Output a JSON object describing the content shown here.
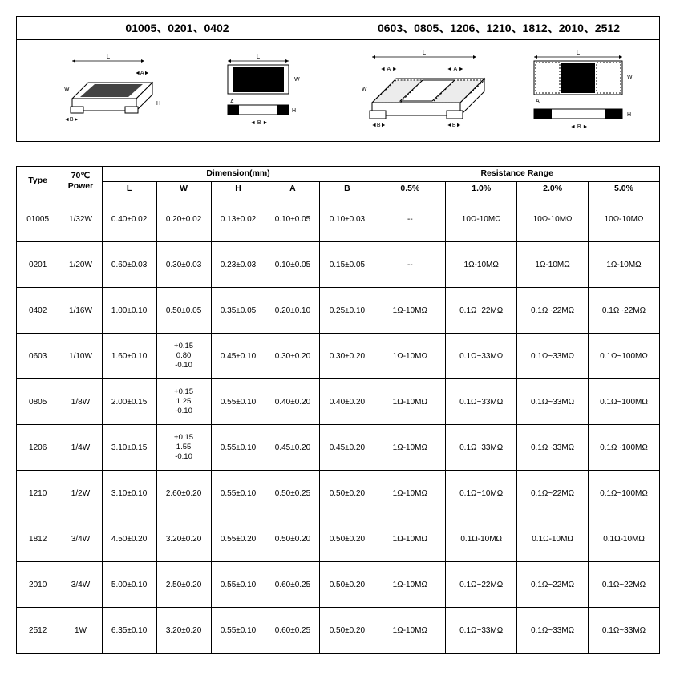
{
  "diagrams": {
    "left_title": "01005、0201、0402",
    "right_title": "0603、0805、1206、1210、1812、2010、2512"
  },
  "table": {
    "header": {
      "type": "Type",
      "power": "70℃\nPower",
      "dim_group": "Dimension(mm)",
      "res_group": "Resistance Range",
      "L": "L",
      "W": "W",
      "H": "H",
      "A": "A",
      "B": "B",
      "p05": "0.5%",
      "p10": "1.0%",
      "p20": "2.0%",
      "p50": "5.0%"
    },
    "rows": [
      {
        "type": "01005",
        "power": "1/32W",
        "L": "0.40±0.02",
        "W": "0.20±0.02",
        "H": "0.13±0.02",
        "A": "0.10±0.05",
        "B": "0.10±0.03",
        "r05": "--",
        "r10": "10Ω-10MΩ",
        "r20": "10Ω-10MΩ",
        "r50": "10Ω-10MΩ"
      },
      {
        "type": "0201",
        "power": "1/20W",
        "L": "0.60±0.03",
        "W": "0.30±0.03",
        "H": "0.23±0.03",
        "A": "0.10±0.05",
        "B": "0.15±0.05",
        "r05": "--",
        "r10": "1Ω-10MΩ",
        "r20": "1Ω-10MΩ",
        "r50": "1Ω-10MΩ"
      },
      {
        "type": "0402",
        "power": "1/16W",
        "L": "1.00±0.10",
        "W": "0.50±0.05",
        "H": "0.35±0.05",
        "A": "0.20±0.10",
        "B": "0.25±0.10",
        "r05": "1Ω-10MΩ",
        "r10": "0.1Ω~22MΩ",
        "r20": "0.1Ω~22MΩ",
        "r50": "0.1Ω~22MΩ"
      },
      {
        "type": "0603",
        "power": "1/10W",
        "L": "1.60±0.10",
        "W": "+0.15\n0.80\n-0.10",
        "H": "0.45±0.10",
        "A": "0.30±0.20",
        "B": "0.30±0.20",
        "r05": "1Ω-10MΩ",
        "r10": "0.1Ω~33MΩ",
        "r20": "0.1Ω~33MΩ",
        "r50": "0.1Ω~100MΩ"
      },
      {
        "type": "0805",
        "power": "1/8W",
        "L": "2.00±0.15",
        "W": "+0.15\n1.25\n-0.10",
        "H": "0.55±0.10",
        "A": "0.40±0.20",
        "B": "0.40±0.20",
        "r05": "1Ω-10MΩ",
        "r10": "0.1Ω~33MΩ",
        "r20": "0.1Ω~33MΩ",
        "r50": "0.1Ω~100MΩ"
      },
      {
        "type": "1206",
        "power": "1/4W",
        "L": "3.10±0.15",
        "W": "+0.15\n1.55\n-0.10",
        "H": "0.55±0.10",
        "A": "0.45±0.20",
        "B": "0.45±0.20",
        "r05": "1Ω-10MΩ",
        "r10": "0.1Ω~33MΩ",
        "r20": "0.1Ω~33MΩ",
        "r50": "0.1Ω~100MΩ"
      },
      {
        "type": "1210",
        "power": "1/2W",
        "L": "3.10±0.10",
        "W": "2.60±0.20",
        "H": "0.55±0.10",
        "A": "0.50±0.25",
        "B": "0.50±0.20",
        "r05": "1Ω-10MΩ",
        "r10": "0.1Ω~10MΩ",
        "r20": "0.1Ω~22MΩ",
        "r50": "0.1Ω~100MΩ"
      },
      {
        "type": "1812",
        "power": "3/4W",
        "L": "4.50±0.20",
        "W": "3.20±0.20",
        "H": "0.55±0.20",
        "A": "0.50±0.20",
        "B": "0.50±0.20",
        "r05": "1Ω-10MΩ",
        "r10": "0.1Ω-10MΩ",
        "r20": "0.1Ω-10MΩ",
        "r50": "0.1Ω-10MΩ"
      },
      {
        "type": "2010",
        "power": "3/4W",
        "L": "5.00±0.10",
        "W": "2.50±0.20",
        "H": "0.55±0.10",
        "A": "0.60±0.25",
        "B": "0.50±0.20",
        "r05": "1Ω-10MΩ",
        "r10": "0.1Ω~22MΩ",
        "r20": "0.1Ω~22MΩ",
        "r50": "0.1Ω~22MΩ"
      },
      {
        "type": "2512",
        "power": "1W",
        "L": "6.35±0.10",
        "W": "3.20±0.20",
        "H": "0.55±0.10",
        "A": "0.60±0.25",
        "B": "0.50±0.20",
        "r05": "1Ω-10MΩ",
        "r10": "0.1Ω~33MΩ",
        "r20": "0.1Ω~33MΩ",
        "r50": "0.1Ω~33MΩ"
      }
    ]
  },
  "style": {
    "border_color": "#000000",
    "background_color": "#ffffff",
    "font_size_header": 10.5,
    "font_size_cell": 10
  }
}
